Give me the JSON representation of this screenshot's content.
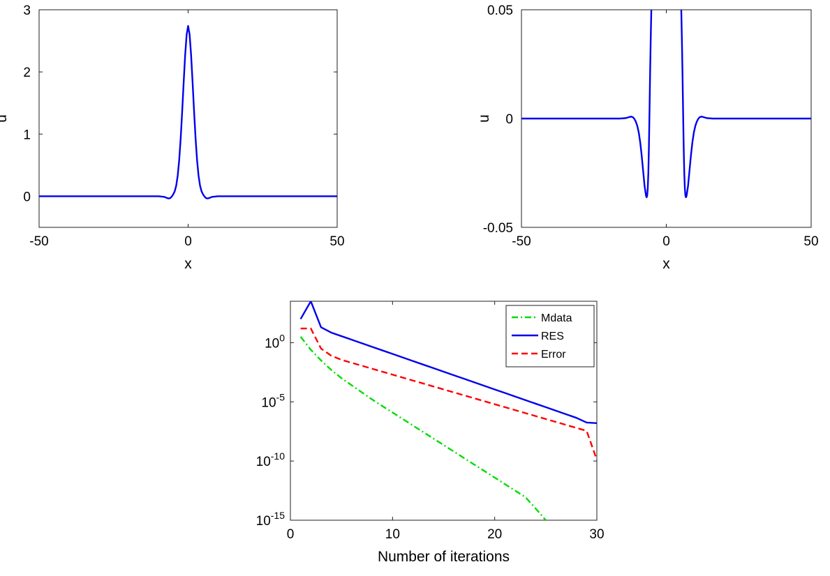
{
  "chart_data": [
    {
      "type": "line",
      "xlabel": "x",
      "ylabel": "u",
      "xlim": [
        -50,
        50
      ],
      "ylim": [
        -0.5,
        3
      ],
      "xticks": [
        -50,
        0,
        50
      ],
      "xtick_labels": [
        "-50",
        "0",
        "50"
      ],
      "yticks": [
        0,
        1,
        2,
        3
      ],
      "ytick_labels": [
        "0",
        "1",
        "2",
        "3"
      ],
      "grid": false,
      "series": [
        {
          "color": "#0000ee",
          "x": [
            -50,
            -20,
            -12,
            -10,
            -8,
            -7,
            -6.5,
            -6,
            -5.5,
            -5,
            -4.5,
            -4,
            -3.5,
            -3,
            -2.5,
            -2,
            -1.5,
            -1,
            -0.5,
            0,
            0.5,
            1,
            1.5,
            2,
            2.5,
            3,
            3.5,
            4,
            4.5,
            5,
            5.5,
            6,
            6.5,
            7,
            8,
            10,
            12,
            20,
            50
          ],
          "y": [
            0,
            0,
            0,
            0.0,
            -0.01,
            -0.03,
            -0.035,
            -0.03,
            -0.005,
            0.03,
            0.08,
            0.17,
            0.33,
            0.58,
            0.93,
            1.36,
            1.83,
            2.27,
            2.6,
            2.74,
            2.6,
            2.27,
            1.83,
            1.36,
            0.93,
            0.58,
            0.33,
            0.17,
            0.08,
            0.03,
            -0.005,
            -0.03,
            -0.035,
            -0.03,
            -0.01,
            0.0,
            0,
            0,
            0
          ]
        }
      ]
    },
    {
      "type": "line",
      "xlabel": "x",
      "ylabel": "u",
      "xlim": [
        -50,
        50
      ],
      "ylim": [
        -0.05,
        0.05
      ],
      "xticks": [
        -50,
        0,
        50
      ],
      "xtick_labels": [
        "-50",
        "0",
        "50"
      ],
      "yticks": [
        -0.05,
        0,
        0.05
      ],
      "ytick_labels": [
        "-0.05",
        "0",
        "0.05"
      ],
      "grid": false,
      "series": [
        {
          "color": "#0000ee",
          "x": [
            -50,
            -20,
            -16,
            -14,
            -13,
            -12.2,
            -11.5,
            -11,
            -10.5,
            -10,
            -9.5,
            -9,
            -8.5,
            -8,
            -7.5,
            -7,
            -6.8,
            -6.6,
            -6.4,
            -6.2,
            -6,
            -5.8,
            -5.6,
            -5.4,
            -5.2,
            -5.0,
            -4.9,
            4.9,
            5.0,
            5.2,
            5.4,
            5.6,
            5.8,
            6,
            6.2,
            6.4,
            6.6,
            6.8,
            7,
            7.5,
            8,
            8.5,
            9,
            9.5,
            10,
            10.5,
            11,
            11.5,
            12.2,
            13,
            14,
            16,
            20,
            50
          ],
          "y": [
            0,
            0,
            0,
            0.0002,
            0.0006,
            0.0009,
            0.0006,
            -0.0002,
            -0.0015,
            -0.0035,
            -0.0065,
            -0.011,
            -0.017,
            -0.024,
            -0.031,
            -0.0355,
            -0.0362,
            -0.0355,
            -0.032,
            -0.025,
            -0.013,
            0.003,
            0.02,
            0.035,
            0.048,
            0.06,
            0.07,
            0.07,
            0.06,
            0.048,
            0.035,
            0.02,
            0.003,
            -0.013,
            -0.025,
            -0.032,
            -0.0355,
            -0.0362,
            -0.0355,
            -0.031,
            -0.024,
            -0.017,
            -0.011,
            -0.0065,
            -0.0035,
            -0.0015,
            -0.0002,
            0.0006,
            0.0009,
            0.0006,
            0.0002,
            0,
            0,
            0
          ]
        }
      ]
    },
    {
      "type": "line",
      "xlabel": "Number of iterations",
      "ylabel": "",
      "xlim": [
        0,
        30
      ],
      "ylim_log10": [
        -15,
        3.5
      ],
      "yscale": "log",
      "xticks": [
        0,
        10,
        20,
        30
      ],
      "xtick_labels": [
        "0",
        "10",
        "20",
        "30"
      ],
      "yticks_log10": [
        -15,
        -10,
        -5,
        0
      ],
      "ytick_base": "10",
      "ytick_exponents": [
        "-15",
        "-10",
        "-5",
        "0"
      ],
      "grid": false,
      "legend": "top-right",
      "series": [
        {
          "name": "Mdata",
          "color": "#00dd00",
          "style": "dashdot",
          "x": [
            1,
            2,
            3,
            4,
            5,
            6,
            7,
            8,
            9,
            10,
            11,
            12,
            13,
            14,
            15,
            16,
            17,
            18,
            19,
            20,
            21,
            22,
            23,
            24,
            25
          ],
          "y_log10": [
            0.5,
            -0.6,
            -1.5,
            -2.3,
            -3.0,
            -3.6,
            -4.2,
            -4.8,
            -5.35,
            -5.9,
            -6.45,
            -7.0,
            -7.55,
            -8.1,
            -8.65,
            -9.2,
            -9.75,
            -10.3,
            -10.85,
            -11.4,
            -11.95,
            -12.5,
            -13.05,
            -14.0,
            -15.0
          ]
        },
        {
          "name": "RES",
          "color": "#0000ee",
          "style": "solid",
          "x": [
            1,
            2,
            3,
            4,
            5,
            6,
            7,
            8,
            9,
            10,
            11,
            12,
            13,
            14,
            15,
            16,
            17,
            18,
            19,
            20,
            21,
            22,
            23,
            24,
            25,
            26,
            27,
            28,
            29,
            30
          ],
          "y_log10": [
            2.0,
            3.5,
            1.3,
            0.85,
            0.55,
            0.25,
            -0.05,
            -0.35,
            -0.65,
            -0.95,
            -1.25,
            -1.55,
            -1.85,
            -2.15,
            -2.45,
            -2.75,
            -3.05,
            -3.35,
            -3.65,
            -3.95,
            -4.25,
            -4.55,
            -4.85,
            -5.15,
            -5.45,
            -5.75,
            -6.05,
            -6.35,
            -6.75,
            -6.8
          ]
        },
        {
          "name": "Error",
          "color": "#ff0000",
          "style": "dashed",
          "x": [
            1,
            2,
            3,
            4,
            5,
            6,
            7,
            8,
            9,
            10,
            11,
            12,
            13,
            14,
            15,
            16,
            17,
            18,
            19,
            20,
            21,
            22,
            23,
            24,
            25,
            26,
            27,
            28,
            29,
            30
          ],
          "y_log10": [
            1.2,
            1.2,
            -0.5,
            -1.1,
            -1.45,
            -1.7,
            -1.95,
            -2.2,
            -2.45,
            -2.7,
            -2.95,
            -3.2,
            -3.45,
            -3.7,
            -3.95,
            -4.2,
            -4.45,
            -4.7,
            -4.95,
            -5.2,
            -5.45,
            -5.7,
            -5.95,
            -6.2,
            -6.45,
            -6.7,
            -6.95,
            -7.2,
            -7.45,
            -9.9
          ]
        }
      ]
    }
  ]
}
